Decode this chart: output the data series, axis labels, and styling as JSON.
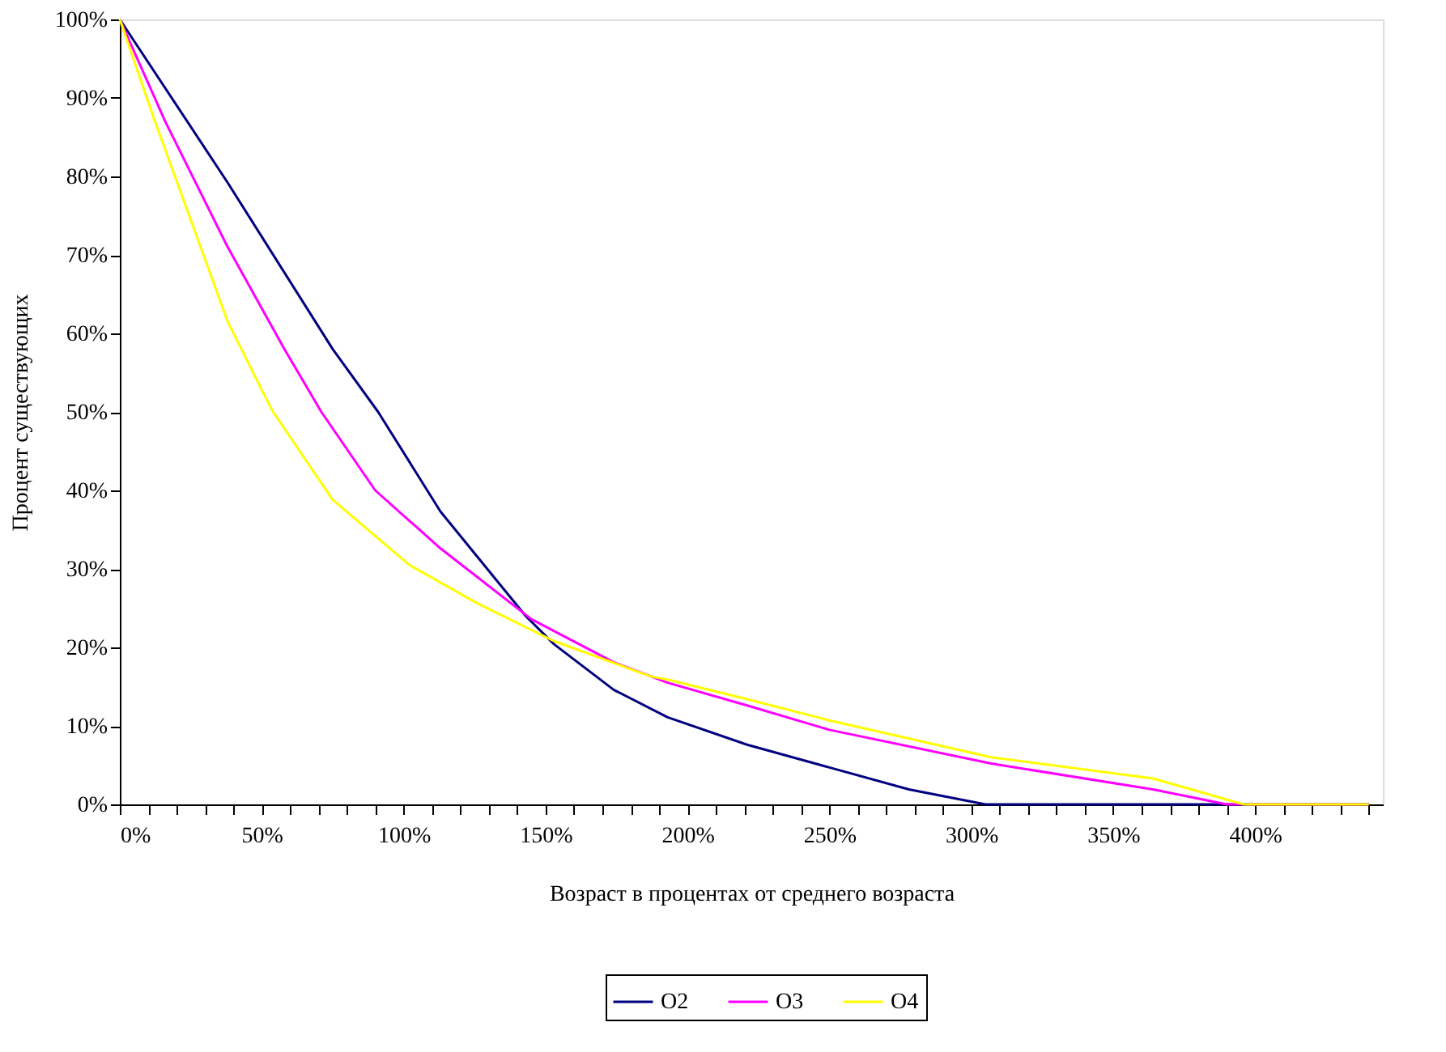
{
  "chart_data": {
    "type": "line",
    "xlabel": "Возраст в процентах от среднего возраста",
    "ylabel": "Процент существующих",
    "xlim": [
      0,
      445
    ],
    "ylim": [
      0,
      100
    ],
    "xticks": [
      {
        "value": 0,
        "label": "0%"
      },
      {
        "value": 10,
        "label": null
      },
      {
        "value": 20,
        "label": null
      },
      {
        "value": 30,
        "label": null
      },
      {
        "value": 40,
        "label": null
      },
      {
        "value": 50,
        "label": "50%"
      },
      {
        "value": 60,
        "label": null
      },
      {
        "value": 70,
        "label": null
      },
      {
        "value": 80,
        "label": null
      },
      {
        "value": 90,
        "label": null
      },
      {
        "value": 100,
        "label": "100%"
      },
      {
        "value": 110,
        "label": null
      },
      {
        "value": 120,
        "label": null
      },
      {
        "value": 130,
        "label": null
      },
      {
        "value": 140,
        "label": null
      },
      {
        "value": 150,
        "label": "150%"
      },
      {
        "value": 160,
        "label": null
      },
      {
        "value": 170,
        "label": null
      },
      {
        "value": 180,
        "label": null
      },
      {
        "value": 190,
        "label": null
      },
      {
        "value": 200,
        "label": "200%"
      },
      {
        "value": 210,
        "label": null
      },
      {
        "value": 220,
        "label": null
      },
      {
        "value": 230,
        "label": null
      },
      {
        "value": 240,
        "label": null
      },
      {
        "value": 250,
        "label": "250%"
      },
      {
        "value": 260,
        "label": null
      },
      {
        "value": 270,
        "label": null
      },
      {
        "value": 280,
        "label": null
      },
      {
        "value": 290,
        "label": null
      },
      {
        "value": 300,
        "label": "300%"
      },
      {
        "value": 310,
        "label": null
      },
      {
        "value": 320,
        "label": null
      },
      {
        "value": 330,
        "label": null
      },
      {
        "value": 340,
        "label": null
      },
      {
        "value": 350,
        "label": "350%"
      },
      {
        "value": 360,
        "label": null
      },
      {
        "value": 370,
        "label": null
      },
      {
        "value": 380,
        "label": null
      },
      {
        "value": 390,
        "label": null
      },
      {
        "value": 400,
        "label": "400%"
      },
      {
        "value": 410,
        "label": null
      },
      {
        "value": 420,
        "label": null
      },
      {
        "value": 430,
        "label": null
      },
      {
        "value": 440,
        "label": null
      }
    ],
    "yticks": [
      {
        "value": 0,
        "label": "0%"
      },
      {
        "value": 10,
        "label": "10%"
      },
      {
        "value": 20,
        "label": "20%"
      },
      {
        "value": 30,
        "label": "30%"
      },
      {
        "value": 40,
        "label": "40%"
      },
      {
        "value": 50,
        "label": "50%"
      },
      {
        "value": 60,
        "label": "60%"
      },
      {
        "value": 70,
        "label": "70%"
      },
      {
        "value": 80,
        "label": "80%"
      },
      {
        "value": 90,
        "label": "90%"
      },
      {
        "value": 100,
        "label": "100%"
      }
    ],
    "grid": false,
    "legend": "bottom",
    "marker": "none",
    "line_style": "solid",
    "series": [
      {
        "name": "O2",
        "color": "#000080",
        "x": [
          0,
          38,
          75,
          91,
          113,
          143,
          153,
          174,
          193,
          221,
          250,
          278,
          305,
          440
        ],
        "values": [
          100,
          79.2,
          58,
          50,
          37.3,
          24,
          20.4,
          14.6,
          11.1,
          7.6,
          4.7,
          1.9,
          0,
          0
        ]
      },
      {
        "name": "O3",
        "color": "#ff00ff",
        "x": [
          0,
          16,
          38,
          58,
          71,
          90,
          113,
          145,
          174,
          193,
          221,
          250,
          307,
          364,
          390,
          440
        ],
        "values": [
          100,
          87,
          71,
          58,
          50,
          40,
          32.6,
          23.6,
          18.1,
          15.5,
          12.6,
          9.5,
          5.2,
          1.9,
          0,
          0
        ]
      },
      {
        "name": "O4",
        "color": "#ffff00",
        "x": [
          0,
          12,
          38,
          50,
          54,
          75,
          102,
          126,
          153,
          187,
          193,
          221,
          250,
          307,
          364,
          396,
          440
        ],
        "values": [
          100,
          87.4,
          61.5,
          52.8,
          50,
          38.8,
          30.5,
          25.6,
          20.8,
          16.3,
          15.9,
          13.4,
          10.7,
          6,
          3.3,
          0,
          0
        ]
      }
    ]
  }
}
